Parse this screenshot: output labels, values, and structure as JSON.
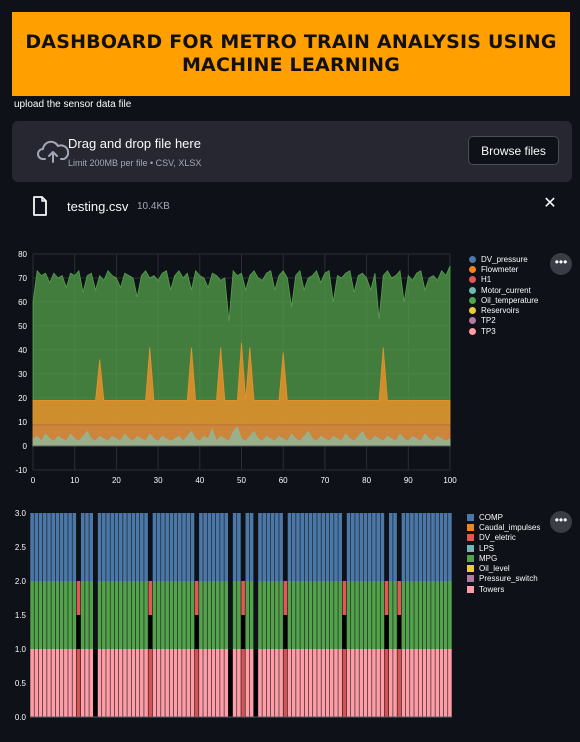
{
  "header": {
    "title": "DASHBOARD FOR METRO TRAIN ANALYSIS USING MACHINE LEARNING"
  },
  "upload": {
    "label": "upload the sensor data file",
    "drop_title": "Drag and drop file here",
    "drop_subtitle": "Limit 200MB per file • CSV, XLSX",
    "browse_label": "Browse files",
    "file_name": "testing.csv",
    "file_size": "10.4KB",
    "close_symbol": "✕"
  },
  "menu_symbol": "•••",
  "colors": {
    "accent": "#ff9f00",
    "background": "#0e1117",
    "panel": "#262730"
  },
  "chart_data": [
    {
      "type": "area",
      "xlim": [
        0,
        100
      ],
      "ylim": [
        -10,
        80
      ],
      "xticks": [
        0,
        10,
        20,
        30,
        40,
        50,
        60,
        70,
        80,
        90,
        100
      ],
      "yticks": [
        -10,
        0,
        10,
        20,
        30,
        40,
        50,
        60,
        70,
        80
      ],
      "grid": true,
      "legend_position": "right",
      "series": [
        {
          "name": "DV_pressure",
          "color": "#4c78a8",
          "values": [
            0,
            0,
            0,
            0,
            0,
            0,
            0,
            0,
            0,
            0,
            0,
            0,
            0,
            0,
            0,
            0,
            0,
            0,
            0,
            0,
            0,
            0,
            0,
            0,
            0,
            0,
            0,
            0,
            0,
            0,
            0,
            0,
            0,
            0,
            0,
            0,
            0,
            0,
            0,
            0,
            0,
            0,
            0,
            0,
            0,
            0,
            0,
            0,
            0,
            0,
            0,
            0,
            0,
            0,
            0,
            0,
            0,
            0,
            0,
            0,
            0,
            0,
            0,
            0,
            0,
            0,
            0,
            0,
            0,
            0,
            0,
            0,
            0,
            0,
            0,
            0,
            0,
            0,
            0,
            0,
            0,
            0,
            0,
            0,
            0,
            0,
            0,
            0,
            0,
            0,
            0,
            0,
            0,
            0,
            0,
            0,
            0,
            0,
            0,
            0,
            0
          ]
        },
        {
          "name": "Flowmeter",
          "color": "#f58518",
          "values": [
            8,
            8,
            8,
            8,
            8,
            8,
            8,
            8,
            8,
            8,
            8,
            8,
            8,
            8,
            8,
            8,
            8,
            8,
            8,
            8,
            8,
            8,
            8,
            8,
            8,
            8,
            8,
            8,
            8,
            8,
            8,
            8,
            8,
            8,
            8,
            8,
            8,
            8,
            8,
            8,
            8,
            8,
            8,
            8,
            8,
            8,
            8,
            8,
            8,
            8,
            8,
            8,
            8,
            8,
            8,
            8,
            8,
            8,
            8,
            8,
            8,
            8,
            8,
            8,
            8,
            8,
            8,
            8,
            8,
            8,
            8,
            8,
            8,
            8,
            8,
            8,
            8,
            8,
            8,
            8,
            8,
            8,
            8,
            8,
            8,
            8,
            8,
            8,
            8,
            8,
            8,
            8,
            8,
            8,
            8,
            8,
            8,
            8,
            8,
            8,
            8
          ]
        },
        {
          "name": "H1",
          "color": "#e45756",
          "values": [
            0,
            0,
            0,
            0,
            0,
            0,
            0,
            0,
            0,
            0,
            0,
            0,
            0,
            0,
            0,
            0,
            0,
            0,
            0,
            0,
            0,
            0,
            0,
            0,
            0,
            0,
            0,
            0,
            0,
            0,
            0,
            0,
            0,
            0,
            0,
            0,
            0,
            0,
            0,
            0,
            0,
            0,
            0,
            0,
            0,
            0,
            0,
            0,
            0,
            0,
            0,
            0,
            0,
            0,
            0,
            0,
            0,
            0,
            0,
            0,
            0,
            0,
            0,
            0,
            0,
            0,
            0,
            0,
            0,
            0,
            0,
            0,
            0,
            0,
            0,
            0,
            0,
            0,
            0,
            0,
            0,
            0,
            0,
            0,
            0,
            0,
            0,
            0,
            0,
            0,
            0,
            0,
            0,
            0,
            0,
            0,
            0,
            0,
            0,
            0,
            0
          ]
        },
        {
          "name": "Motor_current",
          "color": "#72b7b2",
          "values": [
            3,
            4,
            2,
            5,
            3,
            2,
            4,
            3,
            2,
            5,
            3,
            2,
            4,
            6,
            3,
            2,
            4,
            3,
            2,
            4,
            3,
            2,
            5,
            3,
            2,
            4,
            3,
            2,
            5,
            3,
            2,
            4,
            3,
            2,
            3,
            4,
            2,
            4,
            6,
            3,
            2,
            4,
            3,
            7,
            2,
            4,
            3,
            2,
            6,
            8,
            3,
            2,
            4,
            6,
            3,
            2,
            4,
            3,
            2,
            4,
            3,
            2,
            5,
            3,
            2,
            4,
            6,
            3,
            2,
            4,
            3,
            2,
            4,
            3,
            2,
            5,
            3,
            2,
            4,
            6,
            3,
            2,
            4,
            3,
            2,
            4,
            3,
            2,
            5,
            3,
            2,
            4,
            3,
            2,
            5,
            3,
            2,
            4,
            3,
            2,
            3
          ]
        },
        {
          "name": "Oil_temperature",
          "color": "#54a24b",
          "values": [
            60,
            73,
            71,
            72,
            68,
            72,
            70,
            71,
            66,
            72,
            71,
            73,
            64,
            71,
            72,
            65,
            71,
            69,
            73,
            71,
            70,
            66,
            72,
            71,
            70,
            62,
            71,
            73,
            70,
            71,
            69,
            72,
            73,
            65,
            71,
            73,
            70,
            72,
            65,
            73,
            71,
            70,
            66,
            72,
            71,
            69,
            70,
            52,
            73,
            71,
            72,
            65,
            71,
            73,
            70,
            69,
            72,
            73,
            65,
            71,
            73,
            70,
            58,
            71,
            73,
            65,
            70,
            71,
            73,
            68,
            72,
            73,
            60,
            71,
            70,
            72,
            73,
            64,
            71,
            72,
            70,
            65,
            72,
            53,
            71,
            73,
            70,
            71,
            73,
            60,
            71,
            69,
            72,
            73,
            65,
            70,
            71,
            69,
            73,
            71,
            75
          ]
        },
        {
          "name": "Reservoirs",
          "color": "#eeca3b",
          "values": [
            9,
            9,
            9,
            9,
            9,
            9,
            9,
            9,
            9,
            9,
            9,
            9,
            9,
            9,
            9,
            9,
            9,
            9,
            9,
            9,
            9,
            9,
            9,
            9,
            9,
            9,
            9,
            9,
            9,
            9,
            9,
            9,
            9,
            9,
            9,
            9,
            9,
            9,
            9,
            9,
            9,
            9,
            9,
            9,
            9,
            9,
            9,
            9,
            9,
            9,
            9,
            9,
            9,
            9,
            9,
            9,
            9,
            9,
            9,
            9,
            9,
            9,
            9,
            9,
            9,
            9,
            9,
            9,
            9,
            9,
            9,
            9,
            9,
            9,
            9,
            9,
            9,
            9,
            9,
            9,
            9,
            9,
            9,
            9,
            9,
            9,
            9,
            9,
            9,
            9,
            9,
            9,
            9,
            9,
            9,
            9,
            9,
            9,
            9,
            9,
            9
          ]
        },
        {
          "name": "TP2",
          "color": "#b279a2",
          "values": [
            0,
            0,
            0,
            0,
            0,
            0,
            0,
            0,
            0,
            0,
            0,
            0,
            0,
            0,
            0,
            0,
            0,
            0,
            0,
            0,
            0,
            0,
            0,
            0,
            0,
            0,
            0,
            0,
            0,
            0,
            0,
            0,
            0,
            0,
            0,
            0,
            0,
            0,
            0,
            0,
            0,
            0,
            0,
            0,
            0,
            0,
            0,
            0,
            0,
            0,
            0,
            0,
            0,
            0,
            0,
            0,
            0,
            0,
            0,
            0,
            0,
            0,
            0,
            0,
            0,
            0,
            0,
            0,
            0,
            0,
            0,
            0,
            0,
            0,
            0,
            0,
            0,
            0,
            0,
            0,
            0,
            0,
            0,
            0,
            0,
            0,
            0,
            0,
            0,
            0,
            0,
            0,
            0,
            0,
            0,
            0,
            0,
            0,
            0,
            0,
            0
          ]
        },
        {
          "name": "TP3",
          "color": "#ff9da6",
          "values": [
            9,
            9,
            9,
            9,
            9,
            9,
            9,
            9,
            9,
            9,
            9,
            9,
            9,
            9,
            9,
            9,
            9,
            9,
            9,
            9,
            9,
            9,
            9,
            9,
            9,
            9,
            9,
            9,
            9,
            9,
            9,
            9,
            9,
            9,
            9,
            9,
            9,
            9,
            9,
            9,
            9,
            9,
            9,
            9,
            9,
            9,
            9,
            9,
            9,
            9,
            9,
            9,
            9,
            9,
            9,
            9,
            9,
            9,
            9,
            9,
            9,
            9,
            9,
            9,
            9,
            9,
            9,
            9,
            9,
            9,
            9,
            9,
            9,
            9,
            9,
            9,
            9,
            9,
            9,
            9,
            9,
            9,
            9,
            9,
            9,
            9,
            9,
            9,
            9,
            9,
            9,
            9,
            9,
            9,
            9,
            9,
            9,
            9,
            9,
            9,
            9
          ]
        }
      ],
      "flowmeter_peaks": {
        "x": [
          16,
          28,
          38,
          45,
          50,
          52,
          60,
          84
        ],
        "y": [
          25,
          30,
          30,
          30,
          32,
          30,
          28,
          30
        ]
      }
    },
    {
      "type": "bar",
      "stacked": true,
      "ylim": [
        0,
        3
      ],
      "yticks": [
        0.0,
        0.5,
        1.0,
        1.5,
        2.0,
        2.5,
        3.0
      ],
      "grid": true,
      "legend_position": "right",
      "bar_count": 100,
      "series": [
        {
          "name": "COMP",
          "color": "#4c78a8",
          "value": 1
        },
        {
          "name": "Caudal_impulses",
          "color": "#f58518",
          "value": 0
        },
        {
          "name": "DV_eletric",
          "color": "#e45756",
          "value": 0
        },
        {
          "name": "LPS",
          "color": "#72b7b2",
          "value": 0
        },
        {
          "name": "MPG",
          "color": "#54a24b",
          "value": 1
        },
        {
          "name": "Oil_level",
          "color": "#eeca3b",
          "value": 0
        },
        {
          "name": "Pressure_switch",
          "color": "#b279a2",
          "value": 0
        },
        {
          "name": "Towers",
          "color": "#ff9da6",
          "value": 1
        }
      ],
      "gap_bars": [
        11,
        15,
        28,
        39,
        47,
        50,
        53,
        60,
        74,
        84,
        87
      ],
      "dv_eletric_bars": [
        11,
        28,
        39,
        50,
        60,
        74,
        84,
        87
      ]
    }
  ]
}
